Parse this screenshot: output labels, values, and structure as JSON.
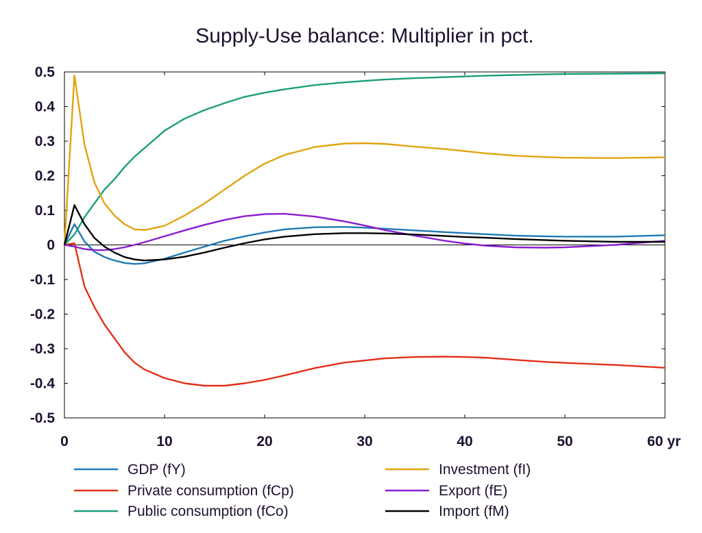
{
  "chart_data": {
    "type": "line",
    "title": "Supply-Use balance: Multiplier in pct.",
    "xlabel": "",
    "ylabel": "",
    "x_unit": "yr",
    "xlim": [
      0,
      60
    ],
    "ylim": [
      -0.5,
      0.5
    ],
    "x_ticks": [
      0,
      10,
      20,
      30,
      40,
      50,
      60
    ],
    "y_ticks": [
      -0.5,
      -0.4,
      -0.3,
      -0.2,
      -0.1,
      0,
      0.1,
      0.2,
      0.3,
      0.4,
      0.5
    ],
    "grid": false,
    "zero_line": true,
    "legend_position": "bottom",
    "x": [
      0,
      1,
      2,
      3,
      4,
      5,
      6,
      7,
      8,
      10,
      12,
      14,
      16,
      18,
      20,
      22,
      25,
      28,
      30,
      32,
      35,
      38,
      40,
      42,
      45,
      48,
      50,
      55,
      60
    ],
    "series": [
      {
        "name": "GDP (fY)",
        "color": "#1f78b4",
        "values": [
          0,
          0.06,
          0.01,
          -0.02,
          -0.035,
          -0.045,
          -0.052,
          -0.055,
          -0.053,
          -0.04,
          -0.022,
          -0.005,
          0.012,
          0.025,
          0.036,
          0.045,
          0.051,
          0.052,
          0.05,
          0.047,
          0.042,
          0.037,
          0.034,
          0.031,
          0.027,
          0.025,
          0.024,
          0.024,
          0.028
        ]
      },
      {
        "name": "Private consumption (fCp)",
        "color": "#e32f17",
        "values": [
          0,
          0.005,
          -0.12,
          -0.18,
          -0.23,
          -0.27,
          -0.31,
          -0.34,
          -0.36,
          -0.385,
          -0.4,
          -0.407,
          -0.407,
          -0.4,
          -0.39,
          -0.377,
          -0.356,
          -0.34,
          -0.334,
          -0.328,
          -0.324,
          -0.323,
          -0.324,
          -0.326,
          -0.332,
          -0.338,
          -0.341,
          -0.347,
          -0.355
        ]
      },
      {
        "name": "Public consumption (fCo)",
        "color": "#1a9c7a",
        "values": [
          0,
          0.03,
          0.08,
          0.12,
          0.16,
          0.19,
          0.225,
          0.255,
          0.28,
          0.33,
          0.365,
          0.39,
          0.41,
          0.428,
          0.44,
          0.45,
          0.462,
          0.47,
          0.474,
          0.478,
          0.482,
          0.485,
          0.487,
          0.489,
          0.491,
          0.493,
          0.494,
          0.495,
          0.496
        ]
      },
      {
        "name": "Investment (fI)",
        "color": "#e0a30d",
        "values": [
          0,
          0.49,
          0.29,
          0.18,
          0.12,
          0.085,
          0.06,
          0.045,
          0.043,
          0.055,
          0.085,
          0.12,
          0.16,
          0.2,
          0.235,
          0.26,
          0.283,
          0.293,
          0.294,
          0.292,
          0.284,
          0.277,
          0.271,
          0.265,
          0.258,
          0.254,
          0.252,
          0.251,
          0.253
        ]
      },
      {
        "name": "Export (fE)",
        "color": "#8b1bd1",
        "values": [
          0,
          -0.005,
          -0.012,
          -0.015,
          -0.015,
          -0.012,
          -0.007,
          0,
          0.008,
          0.025,
          0.042,
          0.058,
          0.072,
          0.083,
          0.089,
          0.09,
          0.082,
          0.068,
          0.056,
          0.043,
          0.027,
          0.012,
          0.004,
          -0.002,
          -0.007,
          -0.008,
          -0.007,
          0,
          0.012
        ]
      },
      {
        "name": "Import (fM)",
        "color": "#000000",
        "values": [
          0,
          0.115,
          0.06,
          0.02,
          -0.005,
          -0.022,
          -0.035,
          -0.042,
          -0.045,
          -0.042,
          -0.034,
          -0.022,
          -0.008,
          0.005,
          0.016,
          0.024,
          0.031,
          0.034,
          0.034,
          0.033,
          0.03,
          0.026,
          0.023,
          0.021,
          0.017,
          0.014,
          0.012,
          0.009,
          0.009
        ]
      }
    ]
  }
}
